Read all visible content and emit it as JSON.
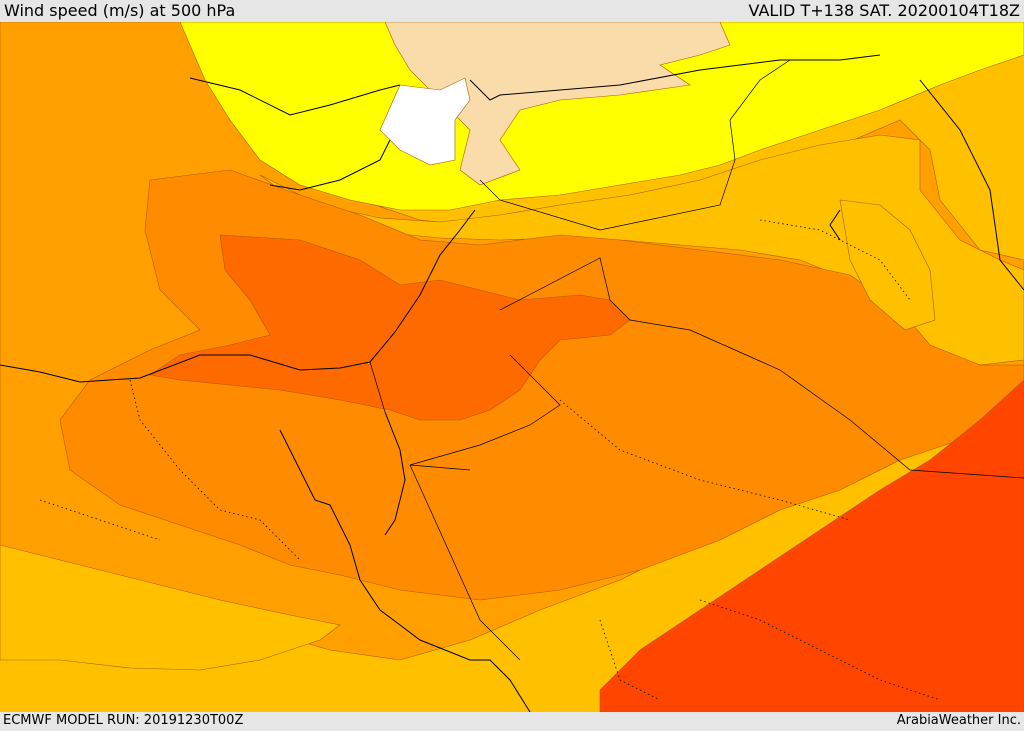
{
  "header": {
    "title": "Wind speed (m/s) at 500 hPa",
    "valid": "VALID T+138 SAT. 20200104T18Z"
  },
  "footer": {
    "model_run": "ECMWF MODEL RUN: 20191230T00Z",
    "credit": "ArabiaWeather Inc."
  },
  "colors": {
    "white": "#ffffff",
    "peach": "#fadcaa",
    "yellow": "#ffff00",
    "gold": "#ffc000",
    "amber": "#ffa000",
    "orange": "#ff8c00",
    "dark_orange": "#ff6a00",
    "red_orange": "#ff4500"
  }
}
